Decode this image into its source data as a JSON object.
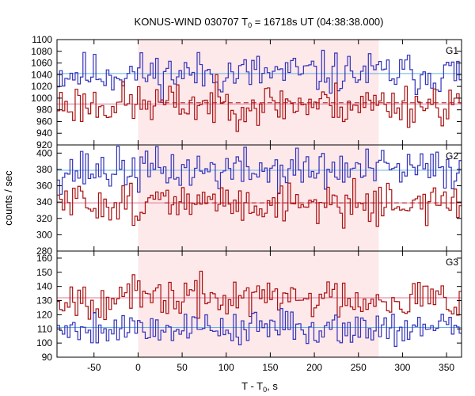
{
  "chart_data": {
    "type": "line",
    "title": {
      "prefix": "KONUS-WIND 030707 T",
      "sub": "0",
      "suffix": " = 16718s UT (04:38:38.000)"
    },
    "xlabel": {
      "prefix": "T - T",
      "sub": "0",
      "suffix": ", s"
    },
    "ylabel": "counts / sec",
    "xlim": [
      -92,
      367
    ],
    "xticks": [
      -50,
      0,
      50,
      100,
      150,
      200,
      250,
      300,
      350
    ],
    "shaded_interval": [
      0,
      273
    ],
    "colors": {
      "blue": "#3333bb",
      "red": "#aa1111",
      "blue_bg": "#66b3e6",
      "red_bg": "#e0779a",
      "shade": "#fde8ea"
    },
    "panels": [
      {
        "label": "G1",
        "ylim": [
          920,
          1100
        ],
        "yticks": [
          920,
          940,
          960,
          980,
          1000,
          1020,
          1040,
          1060,
          1080,
          1100
        ],
        "bin_width": 2.944,
        "x_start": -92,
        "series": [
          {
            "name": "G1 blue",
            "color": "#3333bb",
            "background": 1042,
            "mean": 1042,
            "amp": 18,
            "seed": 11
          },
          {
            "name": "G1 red",
            "color": "#aa1111",
            "background": 990,
            "mean": 992,
            "amp": 18,
            "seed": 23
          }
        ]
      },
      {
        "label": "G2",
        "ylim": [
          280,
          410
        ],
        "yticks": [
          280,
          300,
          320,
          340,
          360,
          380,
          400
        ],
        "bin_width": 2.944,
        "x_start": -92,
        "series": [
          {
            "name": "G2 blue",
            "color": "#3333bb",
            "background": 379,
            "mean": 380,
            "amp": 13,
            "seed": 37
          },
          {
            "name": "G2 red",
            "color": "#aa1111",
            "background": 339,
            "mean": 339,
            "amp": 12,
            "seed": 51
          }
        ]
      },
      {
        "label": "G3",
        "ylim": [
          90,
          165
        ],
        "yticks": [
          90,
          100,
          110,
          120,
          130,
          140,
          150,
          160
        ],
        "bin_width": 2.944,
        "x_start": -92,
        "series": [
          {
            "name": "G3 red",
            "color": "#aa1111",
            "background": 132,
            "mean": 132,
            "amp": 7,
            "seed": 67
          },
          {
            "name": "G3 blue",
            "color": "#3333bb",
            "background": 111,
            "mean": 111,
            "amp": 6,
            "seed": 79
          }
        ]
      }
    ]
  }
}
